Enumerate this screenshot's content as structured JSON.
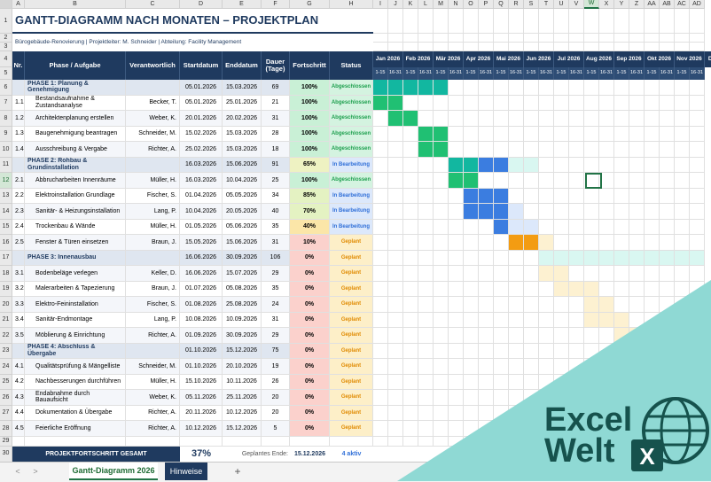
{
  "columns": [
    "A",
    "B",
    "C",
    "D",
    "E",
    "F",
    "G",
    "H",
    "I",
    "J",
    "K",
    "L",
    "M",
    "N",
    "O",
    "P",
    "Q",
    "R",
    "S",
    "T",
    "U",
    "V",
    "W",
    "X",
    "Y",
    "Z",
    "AA",
    "AB",
    "AC",
    "AD"
  ],
  "selected_column": "W",
  "title": "GANTT-DIAGRAMM NACH MONATEN – PROJEKTPLAN",
  "subtitle": "Bürogebäude-Renovierung | Projektleiter: M. Schneider | Abteilung: Facility Management",
  "headers": {
    "nr": "Nr.",
    "task": "Phase / Aufgabe",
    "owner": "Verantwortlich",
    "start": "Startdatum",
    "end": "Enddatum",
    "duration": "Dauer (Tage)",
    "progress": "Fortschritt",
    "status": "Status"
  },
  "months": [
    "Jan 2026",
    "Feb 2026",
    "Mär 2026",
    "Apr 2026",
    "Mai 2026",
    "Jun 2026",
    "Jul 2026",
    "Aug 2026",
    "Sep 2026",
    "Okt 2026",
    "Nov 2026",
    "De"
  ],
  "half_labels": [
    "1-15",
    "16-31"
  ],
  "rows": [
    {
      "type": "phase",
      "task": "PHASE 1: Planung & Genehmigung",
      "start": "05.01.2026",
      "end": "15.03.2026",
      "duration": "69",
      "progress": "100%",
      "status": "Abgeschlossen",
      "bars": [
        0,
        1,
        2,
        3,
        4
      ]
    },
    {
      "nr": "1.1",
      "task": "Bestandsaufnahme & Zustandsanalyse",
      "owner": "Becker, T.",
      "start": "05.01.2026",
      "end": "25.01.2026",
      "duration": "21",
      "progress": "100%",
      "status": "Abgeschlossen",
      "bars": [
        0,
        1
      ]
    },
    {
      "nr": "1.2",
      "task": "Architektenplanung erstellen",
      "owner": "Weber, K.",
      "start": "20.01.2026",
      "end": "20.02.2026",
      "duration": "31",
      "progress": "100%",
      "status": "Abgeschlossen",
      "bars": [
        1,
        2
      ]
    },
    {
      "nr": "1.3",
      "task": "Baugenehmigung beantragen",
      "owner": "Schneider, M.",
      "start": "15.02.2026",
      "end": "15.03.2026",
      "duration": "28",
      "progress": "100%",
      "status": "Abgeschlossen",
      "bars": [
        3,
        4
      ]
    },
    {
      "nr": "1.4",
      "task": "Ausschreibung & Vergabe",
      "owner": "Richter, A.",
      "start": "25.02.2026",
      "end": "15.03.2026",
      "duration": "18",
      "progress": "100%",
      "status": "Abgeschlossen",
      "bars": [
        3,
        4
      ]
    },
    {
      "type": "phase",
      "task": "PHASE 2: Rohbau & Grundinstallation",
      "start": "16.03.2026",
      "end": "15.06.2026",
      "duration": "91",
      "progress": "65%",
      "status": "In Bearbeitung",
      "bars": [
        5,
        6,
        7,
        8,
        9,
        10
      ]
    },
    {
      "nr": "2.1",
      "task": "Abbrucharbeiten Innenräume",
      "owner": "Müller, H.",
      "start": "16.03.2026",
      "end": "10.04.2026",
      "duration": "25",
      "progress": "100%",
      "status": "Abgeschlossen",
      "bars": [
        5,
        6
      ]
    },
    {
      "nr": "2.2",
      "task": "Elektroinstallation Grundlage",
      "owner": "Fischer, S.",
      "start": "01.04.2026",
      "end": "05.05.2026",
      "duration": "34",
      "progress": "85%",
      "status": "In Bearbeitung",
      "bars": [
        6,
        7,
        8
      ]
    },
    {
      "nr": "2.3",
      "task": "Sanitär- & Heizungsinstallation",
      "owner": "Lang, P.",
      "start": "10.04.2026",
      "end": "20.05.2026",
      "duration": "40",
      "progress": "70%",
      "status": "In Bearbeitung",
      "bars": [
        6,
        7,
        8,
        9
      ]
    },
    {
      "nr": "2.4",
      "task": "Trockenbau & Wände",
      "owner": "Müller, H.",
      "start": "01.05.2026",
      "end": "05.06.2026",
      "duration": "35",
      "progress": "40%",
      "status": "In Bearbeitung",
      "bars": [
        8,
        9,
        10
      ]
    },
    {
      "nr": "2.5",
      "task": "Fenster & Türen einsetzen",
      "owner": "Braun, J.",
      "start": "15.05.2026",
      "end": "15.06.2026",
      "duration": "31",
      "progress": "10%",
      "status": "Geplant",
      "bars": [
        9,
        10,
        11
      ]
    },
    {
      "type": "phase",
      "task": "PHASE 3: Innenausbau",
      "start": "16.06.2026",
      "end": "30.09.2026",
      "duration": "106",
      "progress": "0%",
      "status": "Geplant",
      "bars": [
        11,
        12,
        13,
        14,
        15,
        16,
        17,
        18,
        19,
        20,
        21,
        22
      ]
    },
    {
      "nr": "3.1",
      "task": "Bodenbeläge verlegen",
      "owner": "Keller, D.",
      "start": "16.06.2026",
      "end": "15.07.2026",
      "duration": "29",
      "progress": "0%",
      "status": "Geplant",
      "bars": [
        11,
        12
      ]
    },
    {
      "nr": "3.2",
      "task": "Malerarbeiten & Tapezierung",
      "owner": "Braun, J.",
      "start": "01.07.2026",
      "end": "05.08.2026",
      "duration": "35",
      "progress": "0%",
      "status": "Geplant",
      "bars": [
        12,
        13,
        14
      ]
    },
    {
      "nr": "3.3",
      "task": "Elektro-Feininstallation",
      "owner": "Fischer, S.",
      "start": "01.08.2026",
      "end": "25.08.2026",
      "duration": "24",
      "progress": "0%",
      "status": "Geplant",
      "bars": [
        14,
        15
      ]
    },
    {
      "nr": "3.4",
      "task": "Sanitär-Endmontage",
      "owner": "Lang, P.",
      "start": "10.08.2026",
      "end": "10.09.2026",
      "duration": "31",
      "progress": "0%",
      "status": "Geplant",
      "bars": [
        14,
        15,
        16
      ]
    },
    {
      "nr": "3.5",
      "task": "Möblierung & Einrichtung",
      "owner": "Richter, A.",
      "start": "01.09.2026",
      "end": "30.09.2026",
      "duration": "29",
      "progress": "0%",
      "status": "Geplant",
      "bars": [
        16,
        17
      ]
    },
    {
      "type": "phase",
      "task": "PHASE 4: Abschluss & Übergabe",
      "start": "01.10.2026",
      "end": "15.12.2026",
      "duration": "75",
      "progress": "0%",
      "status": "Geplant",
      "bars": [
        18,
        19,
        20,
        21,
        22
      ]
    },
    {
      "nr": "4.1",
      "task": "Qualitätsprüfung & Mängelliste",
      "owner": "Schneider, M.",
      "start": "01.10.2026",
      "end": "20.10.2026",
      "duration": "19",
      "progress": "0%",
      "status": "Geplant",
      "bars": [
        18,
        19
      ]
    },
    {
      "nr": "4.2",
      "task": "Nachbesserungen durchführen",
      "owner": "Müller, H.",
      "start": "15.10.2026",
      "end": "10.11.2026",
      "duration": "26",
      "progress": "0%",
      "status": "Geplant",
      "bars": [
        19,
        20
      ]
    },
    {
      "nr": "4.3",
      "task": "Endabnahme durch Bauaufsicht",
      "owner": "Weber, K.",
      "start": "05.11.2026",
      "end": "25.11.2026",
      "duration": "20",
      "progress": "0%",
      "status": "Geplant",
      "bars": [
        20,
        21
      ]
    },
    {
      "nr": "4.4",
      "task": "Dokumentation & Übergabe",
      "owner": "Richter, A.",
      "start": "20.11.2026",
      "end": "10.12.2026",
      "duration": "20",
      "progress": "0%",
      "status": "Geplant",
      "bars": [
        21,
        22
      ]
    },
    {
      "nr": "4.5",
      "task": "Feierliche Eröffnung",
      "owner": "Richter, A.",
      "start": "10.12.2026",
      "end": "15.12.2026",
      "duration": "5",
      "progress": "0%",
      "status": "Geplant",
      "bars": [
        22
      ]
    }
  ],
  "summary": {
    "label": "PROJEKTFORTSCHRITT GESAMT",
    "value": "37%",
    "end_label": "Geplantes Ende:",
    "end_value": "15.12.2026",
    "active": "4 aktiv"
  },
  "tabs": {
    "active": "Gantt-Diagramm 2026",
    "other": "Hinweise",
    "add": "+",
    "prev": "<",
    "next": ">"
  },
  "logo": {
    "line1": "Excel",
    "line2": "Welt",
    "badge": "X"
  },
  "colors": {
    "header": "#1f3a5f",
    "done": "#20c073",
    "done_phase": "#12b7a0",
    "active": "#3b7de0",
    "active_light": "#dce8fb",
    "planned": "#f39c12",
    "planned_light": "#fdf1d1",
    "phase3_light": "#d9f7f1",
    "teal": "#8fd9d4",
    "logo": "#16524d"
  }
}
